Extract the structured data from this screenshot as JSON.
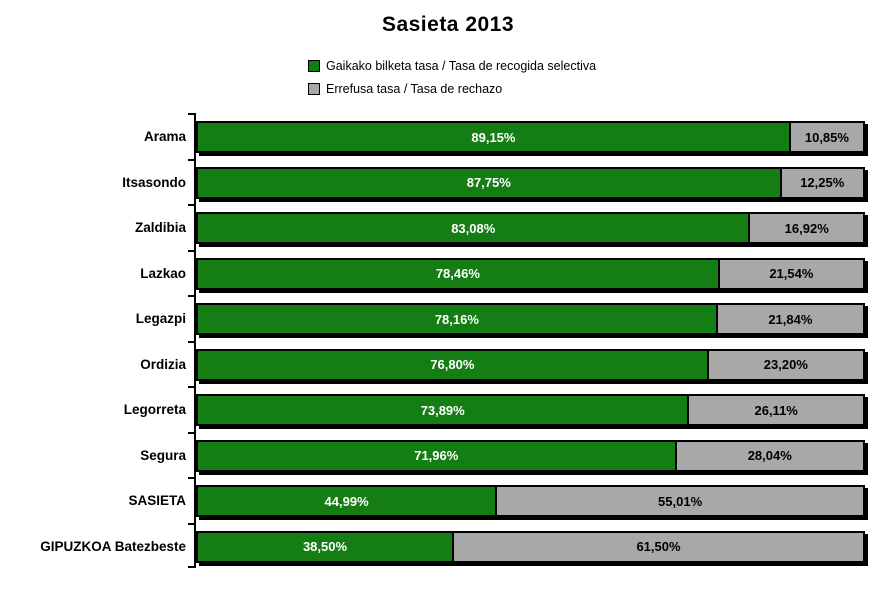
{
  "title": "Sasieta 2013",
  "colors": {
    "selective": "#147d14",
    "rejection": "#a8a8a8",
    "bar_border": "#000000",
    "selective_label_text": "#ffffff",
    "rejection_label_text": "#000000"
  },
  "legend": {
    "items": [
      {
        "label": "Gaikako bilketa tasa / Tasa de recogida selectiva",
        "color": "#147d14"
      },
      {
        "label": "Errefusa tasa / Tasa de rechazo",
        "color": "#a8a8a8"
      }
    ]
  },
  "chart_data": {
    "type": "bar",
    "orientation": "horizontal",
    "stacked": true,
    "title": "Sasieta 2013",
    "xlabel": "",
    "ylabel": "",
    "xlim": [
      0,
      100
    ],
    "grid": false,
    "legend_position": "top",
    "categories": [
      "Arama",
      "Itsasondo",
      "Zaldibia",
      "Lazkao",
      "Legazpi",
      "Ordizia",
      "Legorreta",
      "Segura",
      "SASIETA",
      "GIPUZKOA Batezbeste"
    ],
    "series": [
      {
        "name": "Gaikako bilketa tasa / Tasa de recogida selectiva",
        "color": "#147d14",
        "values": [
          89.15,
          87.75,
          83.08,
          78.46,
          78.16,
          76.8,
          73.89,
          71.96,
          44.99,
          38.5
        ],
        "labels": [
          "89,15%",
          "87,75%",
          "83,08%",
          "78,46%",
          "78,16%",
          "76,80%",
          "73,89%",
          "71,96%",
          "44,99%",
          "38,50%"
        ]
      },
      {
        "name": "Errefusa tasa / Tasa de rechazo",
        "color": "#a8a8a8",
        "values": [
          10.85,
          12.25,
          16.92,
          21.54,
          21.84,
          23.2,
          26.11,
          28.04,
          55.01,
          61.5
        ],
        "labels": [
          "10,85%",
          "12,25%",
          "16,92%",
          "21,54%",
          "21,84%",
          "23,20%",
          "26,11%",
          "28,04%",
          "55,01%",
          "61,50%"
        ]
      }
    ]
  }
}
